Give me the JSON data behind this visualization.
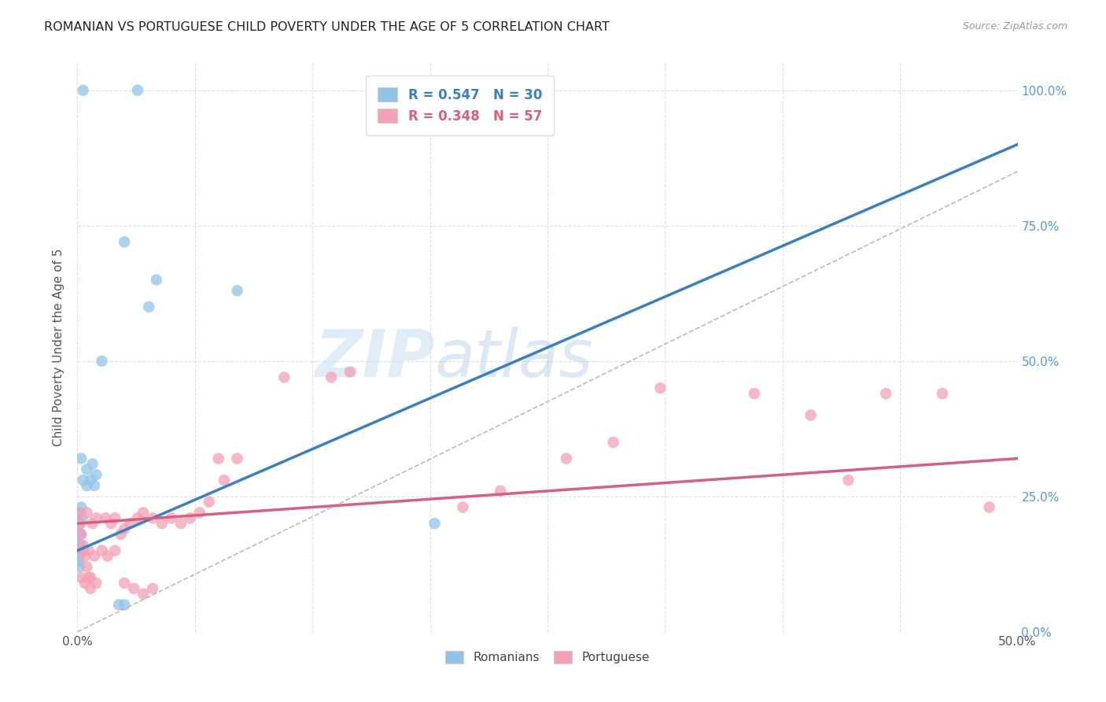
{
  "title": "ROMANIAN VS PORTUGUESE CHILD POVERTY UNDER THE AGE OF 5 CORRELATION CHART",
  "source": "Source: ZipAtlas.com",
  "ylabel": "Child Poverty Under the Age of 5",
  "yticks_labels": [
    "0.0%",
    "25.0%",
    "50.0%",
    "75.0%",
    "100.0%"
  ],
  "ytick_vals": [
    0,
    25,
    50,
    75,
    100
  ],
  "xmin": 0,
  "xmax": 50,
  "ymin": 0,
  "ymax": 105,
  "watermark_zip": "ZIP",
  "watermark_atlas": "atlas",
  "legend_rom": "R = 0.547   N = 30",
  "legend_por": "R = 0.348   N = 57",
  "romanian_color": "#92c4e8",
  "romanian_line_color": "#3a7fc1",
  "portuguese_color": "#f4a0b5",
  "portuguese_line_color": "#d95f7e",
  "background_color": "#ffffff",
  "grid_color": "#e0e0e0",
  "title_color": "#222222",
  "right_ytick_color": "#5599dd",
  "diag_color": "#bbbbbb",
  "romanian_data": [
    [
      0.3,
      100
    ],
    [
      3.2,
      100
    ],
    [
      2.5,
      72
    ],
    [
      4.2,
      65
    ],
    [
      3.8,
      60
    ],
    [
      1.3,
      50
    ],
    [
      8.5,
      63
    ],
    [
      0.2,
      32
    ],
    [
      0.5,
      30
    ],
    [
      0.8,
      31
    ],
    [
      0.3,
      28
    ],
    [
      0.7,
      28
    ],
    [
      1.0,
      29
    ],
    [
      0.5,
      27
    ],
    [
      0.9,
      27
    ],
    [
      0.1,
      22
    ],
    [
      0.2,
      23
    ],
    [
      0.15,
      20
    ],
    [
      0.25,
      21
    ],
    [
      0.1,
      18
    ],
    [
      0.2,
      18
    ],
    [
      0.1,
      16
    ],
    [
      0.15,
      16
    ],
    [
      0.05,
      15
    ],
    [
      0.1,
      14
    ],
    [
      0.05,
      13
    ],
    [
      0.1,
      12
    ],
    [
      2.2,
      5
    ],
    [
      2.5,
      5
    ],
    [
      19.0,
      20
    ]
  ],
  "portuguese_data": [
    [
      0.5,
      22
    ],
    [
      0.8,
      20
    ],
    [
      1.0,
      21
    ],
    [
      1.5,
      21
    ],
    [
      1.8,
      20
    ],
    [
      2.0,
      21
    ],
    [
      0.3,
      15
    ],
    [
      0.6,
      15
    ],
    [
      0.9,
      14
    ],
    [
      1.3,
      15
    ],
    [
      1.6,
      14
    ],
    [
      2.0,
      15
    ],
    [
      2.3,
      18
    ],
    [
      2.5,
      19
    ],
    [
      2.8,
      20
    ],
    [
      3.2,
      21
    ],
    [
      3.5,
      22
    ],
    [
      4.0,
      21
    ],
    [
      4.5,
      20
    ],
    [
      5.0,
      21
    ],
    [
      5.5,
      20
    ],
    [
      6.0,
      21
    ],
    [
      6.5,
      22
    ],
    [
      0.2,
      10
    ],
    [
      0.4,
      9
    ],
    [
      0.7,
      10
    ],
    [
      1.0,
      9
    ],
    [
      2.5,
      9
    ],
    [
      3.0,
      8
    ],
    [
      3.5,
      7
    ],
    [
      4.0,
      8
    ],
    [
      7.5,
      32
    ],
    [
      8.5,
      32
    ],
    [
      11.0,
      47
    ],
    [
      13.5,
      47
    ],
    [
      14.5,
      48
    ],
    [
      20.5,
      23
    ],
    [
      22.5,
      26
    ],
    [
      26.0,
      32
    ],
    [
      28.5,
      35
    ],
    [
      31.0,
      45
    ],
    [
      36.0,
      44
    ],
    [
      39.0,
      40
    ],
    [
      41.0,
      28
    ],
    [
      43.0,
      44
    ],
    [
      46.0,
      44
    ],
    [
      48.5,
      23
    ],
    [
      7.0,
      24
    ],
    [
      7.8,
      28
    ],
    [
      0.1,
      22
    ],
    [
      0.15,
      20
    ],
    [
      0.2,
      18
    ],
    [
      0.3,
      16
    ],
    [
      0.4,
      14
    ],
    [
      0.5,
      12
    ],
    [
      0.6,
      10
    ],
    [
      0.7,
      8
    ]
  ]
}
